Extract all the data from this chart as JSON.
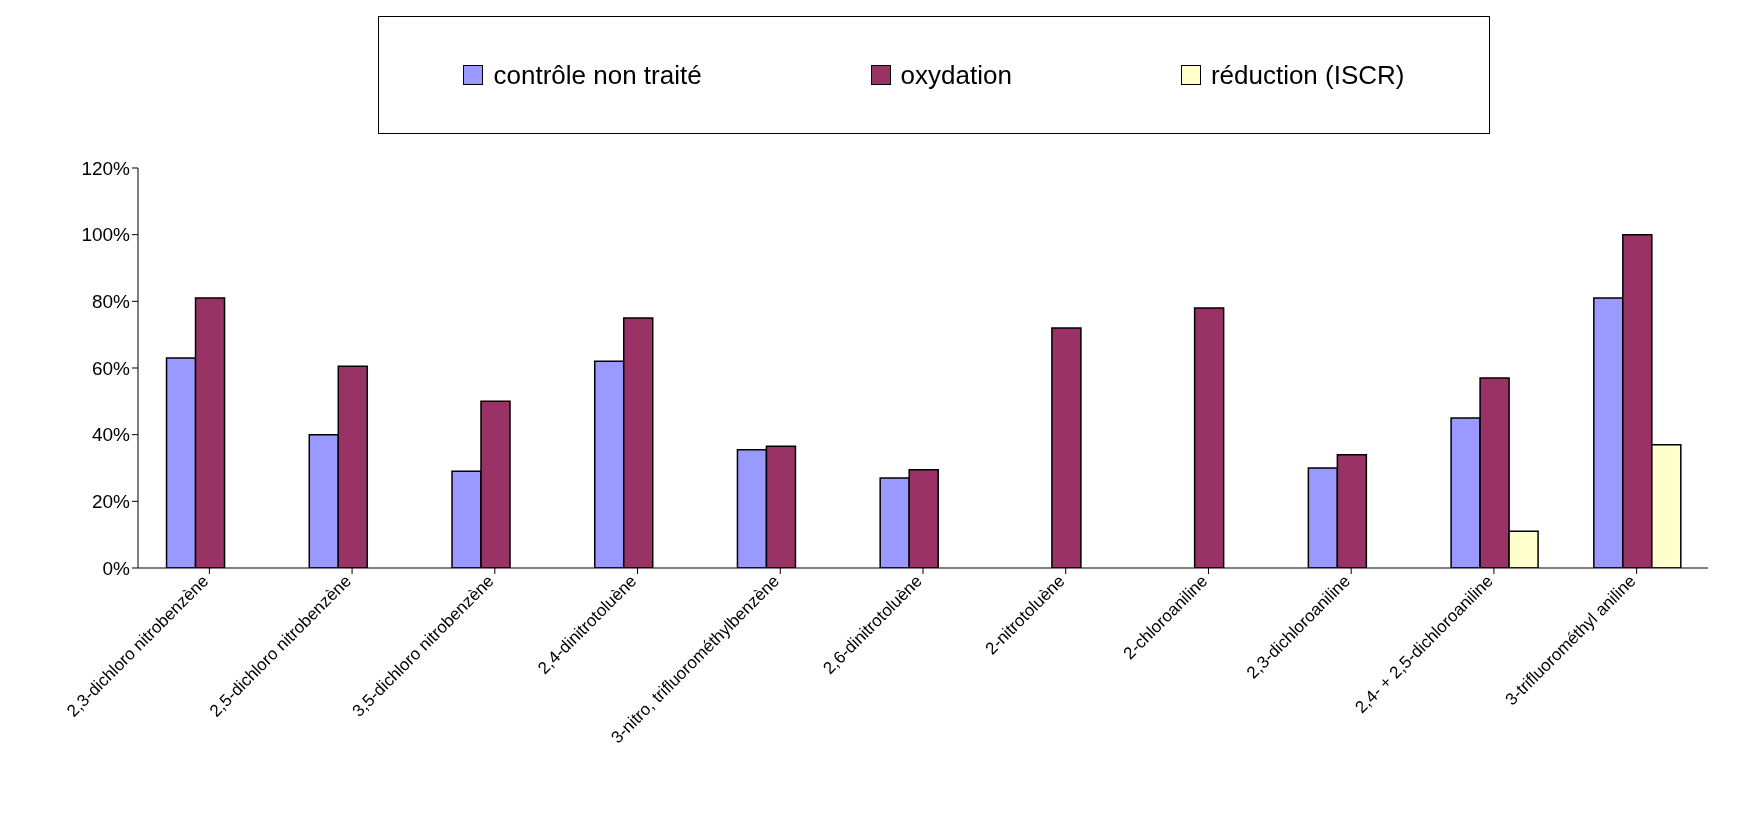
{
  "chart_data": {
    "type": "bar",
    "categories": [
      "2,3-dichloro nitrobenzène",
      "2,5-dichloro nitrobenzène",
      "3,5-dichloro nitrobenzène",
      "2,4-dinitrotoluène",
      "3-nitro, trifluorométhylbenzène",
      "2,6-dinitrotoluène",
      "2-nitrotoluène",
      "2-chloroaniline",
      "2,3-dichloroaniline",
      "2,4- + 2,5-dichloroaniline",
      "3-trifluorométhyl aniline"
    ],
    "series": [
      {
        "name": "contrôle non traité",
        "color": "#9999ff",
        "values": [
          63,
          40,
          29,
          62,
          35.5,
          27,
          null,
          null,
          30,
          45,
          81
        ]
      },
      {
        "name": "oxydation",
        "color": "#993366",
        "values": [
          81,
          60.5,
          50,
          75,
          36.5,
          29.5,
          72,
          78,
          34,
          57,
          100
        ]
      },
      {
        "name": "réduction (ISCR)",
        "color": "#ffffcc",
        "values": [
          null,
          null,
          null,
          null,
          null,
          null,
          null,
          null,
          null,
          11,
          37
        ]
      }
    ],
    "ylim": [
      0,
      120
    ],
    "yticks": [
      {
        "value": 0,
        "label": "0%"
      },
      {
        "value": 20,
        "label": "20%"
      },
      {
        "value": 40,
        "label": "40%"
      },
      {
        "value": 60,
        "label": "60%"
      },
      {
        "value": 80,
        "label": "80%"
      },
      {
        "value": 100,
        "label": "100%"
      },
      {
        "value": 120,
        "label": "120%"
      }
    ],
    "grid": false,
    "legend": "top"
  }
}
